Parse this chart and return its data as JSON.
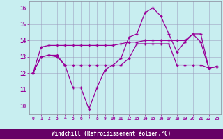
{
  "title": "",
  "xlabel": "Windchill (Refroidissement éolien,°C)",
  "ylabel": "",
  "background_color": "#c8eef0",
  "line_color": "#990099",
  "label_bg_color": "#660066",
  "label_text_color": "#ffffff",
  "grid_color": "#9999bb",
  "x": [
    0,
    1,
    2,
    3,
    4,
    5,
    6,
    7,
    8,
    9,
    10,
    11,
    12,
    13,
    14,
    15,
    16,
    17,
    18,
    19,
    20,
    21,
    22,
    23
  ],
  "series1": [
    12.0,
    13.0,
    13.1,
    13.1,
    12.5,
    11.1,
    11.1,
    9.8,
    11.1,
    12.2,
    12.5,
    12.9,
    14.2,
    14.4,
    15.7,
    16.0,
    15.5,
    14.4,
    13.3,
    13.9,
    14.4,
    13.9,
    12.3,
    12.4
  ],
  "series2": [
    12.0,
    13.6,
    13.7,
    13.7,
    13.7,
    13.7,
    13.7,
    13.7,
    13.7,
    13.7,
    13.7,
    13.8,
    13.9,
    13.9,
    14.0,
    14.0,
    14.0,
    14.0,
    14.0,
    14.0,
    14.4,
    14.4,
    12.3,
    12.4
  ],
  "series3": [
    12.0,
    13.0,
    13.1,
    13.0,
    12.5,
    12.5,
    12.5,
    12.5,
    12.5,
    12.5,
    12.5,
    12.5,
    12.9,
    13.8,
    13.8,
    13.8,
    13.8,
    13.8,
    12.5,
    12.5,
    12.5,
    12.5,
    12.3,
    12.4
  ],
  "ylim": [
    9.5,
    16.4
  ],
  "yticks": [
    10,
    11,
    12,
    13,
    14,
    15,
    16
  ],
  "xticks": [
    0,
    1,
    2,
    3,
    4,
    5,
    6,
    7,
    8,
    9,
    10,
    11,
    12,
    13,
    14,
    15,
    16,
    17,
    18,
    19,
    20,
    21,
    22,
    23
  ]
}
